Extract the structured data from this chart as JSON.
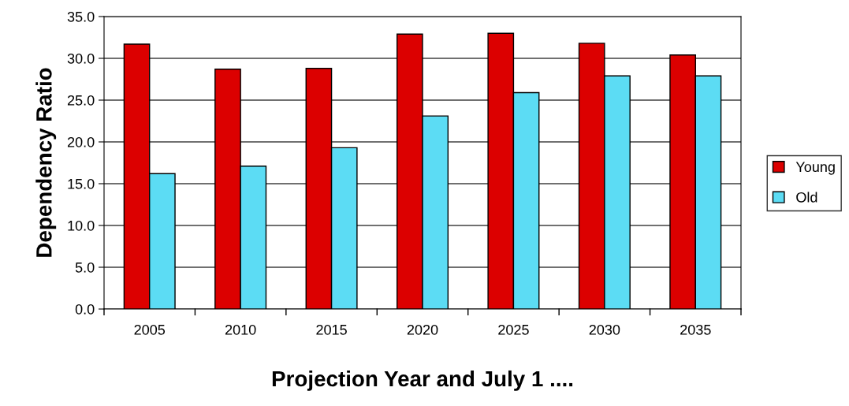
{
  "chart_data": {
    "type": "bar",
    "xlabel": "Projection Year and July 1 ....",
    "ylabel": "Dependency Ratio",
    "categories": [
      "2005",
      "2010",
      "2015",
      "2020",
      "2025",
      "2030",
      "2035"
    ],
    "series": [
      {
        "name": "Young",
        "color": "#dc0000",
        "values": [
          31.7,
          28.7,
          28.8,
          32.9,
          33.0,
          31.8,
          30.4
        ]
      },
      {
        "name": "Old",
        "color": "#5cdcf4",
        "values": [
          16.2,
          17.1,
          19.3,
          23.1,
          25.9,
          27.9,
          27.9
        ]
      }
    ],
    "ylim": [
      0,
      35
    ],
    "yticks": [
      {
        "value": 0,
        "label": "0.0"
      },
      {
        "value": 5,
        "label": "5.0"
      },
      {
        "value": 10,
        "label": "10.0"
      },
      {
        "value": 15,
        "label": "15.0"
      },
      {
        "value": 20,
        "label": "20.0"
      },
      {
        "value": 25,
        "label": "25.0"
      },
      {
        "value": 30,
        "label": "30.0"
      },
      {
        "value": 35,
        "label": "35.0"
      }
    ],
    "grid": "y",
    "legend": "right"
  }
}
